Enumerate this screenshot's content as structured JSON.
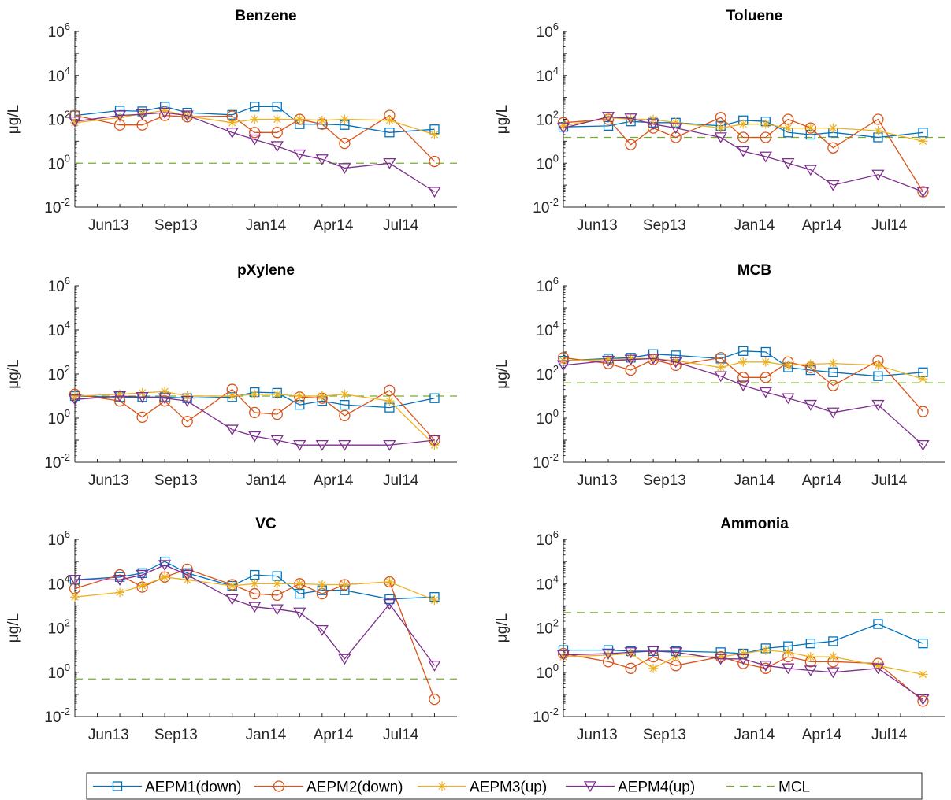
{
  "figure": {
    "legend": {
      "entries": [
        {
          "label": "AEPM1(down)",
          "color": "#0072BD",
          "marker": "square"
        },
        {
          "label": "AEPM2(down)",
          "color": "#D95319",
          "marker": "circle"
        },
        {
          "label": "AEPM3(up)",
          "color": "#EDB120",
          "marker": "asterisk"
        },
        {
          "label": "AEPM4(up)",
          "color": "#7E2F8E",
          "marker": "triangle-down"
        },
        {
          "label": "MCL",
          "color": "#77AC30",
          "marker": "dashed-line"
        }
      ]
    }
  },
  "chart_data": [
    {
      "type": "line",
      "title": "Benzene",
      "ylabel": "μg/L",
      "yscale": "log",
      "ylim_exp": [
        -2,
        6
      ],
      "ytick_exps": [
        "-2",
        "0",
        "2",
        "4",
        "6"
      ],
      "xtick_labels": [
        "Jun13",
        "Sep13",
        "Jan14",
        "Apr14",
        "Jul14"
      ],
      "xtick_pos": [
        1.5,
        4.5,
        8.5,
        11.5,
        14.5
      ],
      "xlim": [
        0,
        17
      ],
      "mcl": 1.0,
      "series": [
        {
          "name": "AEPM1(down)",
          "x": [
            0,
            2,
            3,
            4,
            5,
            7,
            8,
            9,
            10,
            11,
            12,
            14,
            16
          ],
          "y": [
            150,
            250,
            230,
            380,
            200,
            160,
            380,
            380,
            60,
            60,
            55,
            25,
            35
          ]
        },
        {
          "name": "AEPM2(down)",
          "x": [
            0,
            2,
            3,
            4,
            5,
            7,
            8,
            9,
            10,
            11,
            12,
            14,
            16
          ],
          "y": [
            150,
            55,
            55,
            150,
            130,
            140,
            25,
            25,
            100,
            60,
            8,
            150,
            1.2
          ]
        },
        {
          "name": "AEPM3(up)",
          "x": [
            0,
            2,
            3,
            4,
            5,
            7,
            8,
            9,
            10,
            11,
            12,
            14,
            16
          ],
          "y": [
            70,
            120,
            180,
            250,
            140,
            70,
            100,
            100,
            100,
            90,
            100,
            90,
            20
          ]
        },
        {
          "name": "AEPM4(up)",
          "x": [
            0,
            2,
            3,
            4,
            5,
            7,
            8,
            9,
            10,
            11,
            12,
            14,
            16
          ],
          "y": [
            80,
            150,
            170,
            200,
            150,
            25,
            12,
            6,
            2.5,
            1.5,
            0.6,
            1.0,
            0.05
          ]
        }
      ]
    },
    {
      "type": "line",
      "title": "Toluene",
      "ylabel": "μg/L",
      "yscale": "log",
      "ylim_exp": [
        -2,
        6
      ],
      "ytick_exps": [
        "-2",
        "0",
        "2",
        "4",
        "6"
      ],
      "xtick_labels": [
        "Jun13",
        "Sep13",
        "Jan14",
        "Apr14",
        "Jul14"
      ],
      "xtick_pos": [
        1.5,
        4.5,
        8.5,
        11.5,
        14.5
      ],
      "xlim": [
        0,
        17
      ],
      "mcl": 15,
      "series": [
        {
          "name": "AEPM1(down)",
          "x": [
            0,
            2,
            3,
            4,
            5,
            7,
            8,
            9,
            10,
            11,
            12,
            14,
            16
          ],
          "y": [
            45,
            50,
            80,
            70,
            70,
            50,
            90,
            80,
            25,
            20,
            25,
            15,
            25
          ]
        },
        {
          "name": "AEPM2(down)",
          "x": [
            0,
            2,
            3,
            4,
            5,
            7,
            8,
            9,
            10,
            11,
            12,
            14,
            16
          ],
          "y": [
            70,
            100,
            7,
            40,
            15,
            120,
            15,
            15,
            100,
            40,
            5,
            100,
            0.05
          ]
        },
        {
          "name": "AEPM3(up)",
          "x": [
            0,
            2,
            3,
            4,
            5,
            7,
            8,
            9,
            10,
            11,
            12,
            14,
            16
          ],
          "y": [
            50,
            120,
            100,
            100,
            70,
            40,
            60,
            60,
            40,
            40,
            40,
            30,
            10
          ]
        },
        {
          "name": "AEPM4(up)",
          "x": [
            0,
            2,
            3,
            4,
            5,
            7,
            8,
            9,
            10,
            11,
            12,
            14,
            16
          ],
          "y": [
            40,
            130,
            110,
            60,
            40,
            15,
            3.5,
            2,
            1.0,
            0.5,
            0.1,
            0.3,
            0.05
          ]
        }
      ]
    },
    {
      "type": "line",
      "title": "pXylene",
      "ylabel": "μg/L",
      "yscale": "log",
      "ylim_exp": [
        -2,
        6
      ],
      "ytick_exps": [
        "-2",
        "0",
        "2",
        "4",
        "6"
      ],
      "xtick_labels": [
        "Jun13",
        "Sep13",
        "Jan14",
        "Apr14",
        "Jul14"
      ],
      "xtick_pos": [
        1.5,
        4.5,
        8.5,
        11.5,
        14.5
      ],
      "xlim": [
        0,
        17
      ],
      "mcl": 10,
      "series": [
        {
          "name": "AEPM1(down)",
          "x": [
            0,
            2,
            3,
            4,
            5,
            7,
            8,
            9,
            10,
            11,
            12,
            14,
            16
          ],
          "y": [
            10,
            9,
            9,
            9,
            8,
            9,
            15,
            14,
            4,
            6,
            4,
            3,
            8
          ]
        },
        {
          "name": "AEPM2(down)",
          "x": [
            0,
            2,
            3,
            4,
            5,
            7,
            8,
            9,
            10,
            11,
            12,
            14,
            16
          ],
          "y": [
            12,
            6,
            1.1,
            6,
            0.7,
            20,
            1.8,
            1.5,
            9,
            8,
            1.3,
            18,
            0.1
          ]
        },
        {
          "name": "AEPM3(up)",
          "x": [
            0,
            2,
            3,
            4,
            5,
            7,
            8,
            9,
            10,
            11,
            12,
            14,
            16
          ],
          "y": [
            10,
            12,
            14,
            16,
            10,
            10,
            12,
            12,
            10,
            10,
            12,
            6,
            0.06
          ]
        },
        {
          "name": "AEPM4(up)",
          "x": [
            0,
            2,
            3,
            4,
            5,
            7,
            8,
            9,
            10,
            11,
            12,
            14,
            16
          ],
          "y": [
            7,
            10,
            9,
            8,
            6,
            0.3,
            0.15,
            0.1,
            0.06,
            0.06,
            0.06,
            0.06,
            0.1
          ]
        }
      ]
    },
    {
      "type": "line",
      "title": "MCB",
      "ylabel": "μg/L",
      "yscale": "log",
      "ylim_exp": [
        -2,
        6
      ],
      "ytick_exps": [
        "-2",
        "0",
        "2",
        "4",
        "6"
      ],
      "xtick_labels": [
        "Jun13",
        "Sep13",
        "Jan14",
        "Apr14",
        "Jul14"
      ],
      "xtick_pos": [
        1.5,
        4.5,
        8.5,
        11.5,
        14.5
      ],
      "xlim": [
        0,
        17
      ],
      "mcl": 40,
      "series": [
        {
          "name": "AEPM1(down)",
          "x": [
            0,
            2,
            3,
            4,
            5,
            7,
            8,
            9,
            10,
            11,
            12,
            14,
            16
          ],
          "y": [
            400,
            500,
            550,
            800,
            700,
            500,
            1100,
            1000,
            200,
            150,
            120,
            80,
            120
          ]
        },
        {
          "name": "AEPM2(down)",
          "x": [
            0,
            2,
            3,
            4,
            5,
            7,
            8,
            9,
            10,
            11,
            12,
            14,
            16
          ],
          "y": [
            550,
            300,
            150,
            450,
            250,
            550,
            70,
            70,
            350,
            200,
            30,
            400,
            2
          ]
        },
        {
          "name": "AEPM3(up)",
          "x": [
            0,
            2,
            3,
            4,
            5,
            7,
            8,
            9,
            10,
            11,
            12,
            14,
            16
          ],
          "y": [
            400,
            450,
            500,
            500,
            400,
            200,
            350,
            350,
            250,
            280,
            300,
            250,
            60
          ]
        },
        {
          "name": "AEPM4(up)",
          "x": [
            0,
            2,
            3,
            4,
            5,
            7,
            8,
            9,
            10,
            11,
            12,
            14,
            16
          ],
          "y": [
            250,
            400,
            450,
            500,
            350,
            80,
            30,
            15,
            8,
            4,
            1.8,
            4,
            0.06
          ]
        }
      ]
    },
    {
      "type": "line",
      "title": "VC",
      "ylabel": "μg/L",
      "yscale": "log",
      "ylim_exp": [
        -2,
        6
      ],
      "ytick_exps": [
        "-2",
        "0",
        "2",
        "4",
        "6"
      ],
      "xtick_labels": [
        "Jun13",
        "Sep13",
        "Jan14",
        "Apr14",
        "Jul14"
      ],
      "xtick_pos": [
        1.5,
        4.5,
        8.5,
        11.5,
        14.5
      ],
      "xlim": [
        0,
        17
      ],
      "mcl": 0.5,
      "series": [
        {
          "name": "AEPM1(down)",
          "x": [
            0,
            2,
            3,
            4,
            5,
            7,
            8,
            9,
            10,
            11,
            12,
            14,
            16
          ],
          "y": [
            15000,
            20000,
            30000,
            100000,
            30000,
            8000,
            25000,
            22000,
            3500,
            5000,
            5000,
            2000,
            2500
          ]
        },
        {
          "name": "AEPM2(down)",
          "x": [
            0,
            2,
            3,
            4,
            5,
            7,
            8,
            9,
            10,
            11,
            12,
            14,
            16
          ],
          "y": [
            6000,
            25000,
            7000,
            20000,
            45000,
            9000,
            3500,
            3000,
            10000,
            3500,
            9000,
            12000,
            0.06
          ]
        },
        {
          "name": "AEPM3(up)",
          "x": [
            0,
            2,
            3,
            4,
            5,
            7,
            8,
            9,
            10,
            11,
            12,
            14,
            16
          ],
          "y": [
            2500,
            4000,
            8000,
            20000,
            15000,
            8000,
            10000,
            10000,
            10000,
            9000,
            9000,
            12000,
            1800
          ]
        },
        {
          "name": "AEPM4(up)",
          "x": [
            0,
            2,
            3,
            4,
            5,
            7,
            8,
            9,
            10,
            11,
            12,
            14,
            16
          ],
          "y": [
            15000,
            15000,
            25000,
            70000,
            25000,
            2000,
            900,
            700,
            500,
            80,
            4,
            1200,
            2
          ]
        }
      ]
    },
    {
      "type": "line",
      "title": "Ammonia",
      "ylabel": "μg/L",
      "yscale": "log",
      "ylim_exp": [
        -2,
        6
      ],
      "ytick_exps": [
        "-2",
        "0",
        "2",
        "4",
        "6"
      ],
      "xtick_labels": [
        "Jun13",
        "Sep13",
        "Jan14",
        "Apr14",
        "Jul14"
      ],
      "xtick_pos": [
        1.5,
        4.5,
        8.5,
        11.5,
        14.5
      ],
      "xlim": [
        0,
        17
      ],
      "mcl": 500,
      "series": [
        {
          "name": "AEPM1(down)",
          "x": [
            0,
            2,
            3,
            4,
            5,
            7,
            8,
            9,
            10,
            11,
            12,
            14,
            16
          ],
          "y": [
            10,
            10,
            9,
            9,
            9,
            8,
            7,
            12,
            15,
            20,
            25,
            150,
            20
          ]
        },
        {
          "name": "AEPM2(down)",
          "x": [
            0,
            2,
            3,
            4,
            5,
            7,
            8,
            9,
            10,
            11,
            12,
            14,
            16
          ],
          "y": [
            7,
            3,
            1.5,
            5,
            2,
            5,
            2.5,
            1.5,
            5,
            3,
            3,
            2.5,
            0.05
          ]
        },
        {
          "name": "AEPM3(up)",
          "x": [
            0,
            2,
            3,
            4,
            5,
            7,
            8,
            9,
            10,
            11,
            12,
            14,
            16
          ],
          "y": [
            5,
            6,
            7,
            1.5,
            5,
            5,
            7,
            10,
            8,
            5,
            5,
            2,
            0.8
          ]
        },
        {
          "name": "AEPM4(up)",
          "x": [
            0,
            2,
            3,
            4,
            5,
            7,
            8,
            9,
            10,
            11,
            12,
            14,
            16
          ],
          "y": [
            6,
            7,
            8,
            9,
            8,
            4,
            4,
            2,
            1.5,
            1.2,
            1.0,
            1.5,
            0.06
          ]
        }
      ]
    }
  ]
}
